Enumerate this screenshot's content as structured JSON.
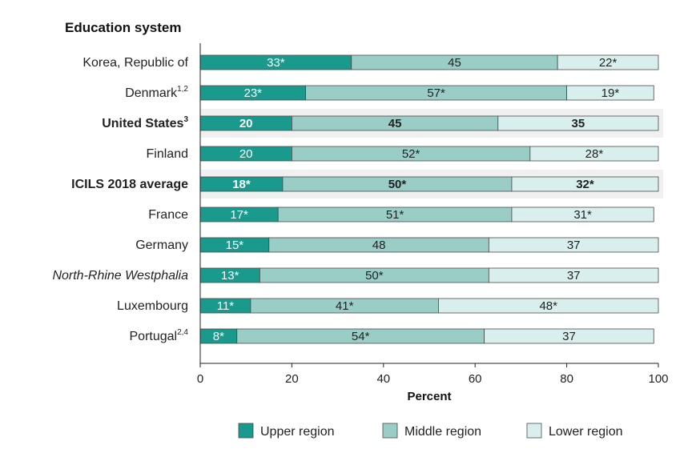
{
  "chart_data": {
    "type": "bar",
    "orientation": "horizontal",
    "stacked": true,
    "category_header": "Education system",
    "xlabel": "Percent",
    "xlim": [
      0,
      100
    ],
    "x_ticks": [
      "0",
      "20",
      "40",
      "60",
      "80",
      "100"
    ],
    "categories": [
      {
        "name": "Korea, Republic of",
        "sup": "",
        "style": "normal",
        "highlight": false
      },
      {
        "name": "Denmark",
        "sup": "1,2",
        "style": "normal",
        "highlight": false
      },
      {
        "name": "United States",
        "sup": "3",
        "style": "bold",
        "highlight": true
      },
      {
        "name": "Finland",
        "sup": "",
        "style": "normal",
        "highlight": false
      },
      {
        "name": "ICILS 2018 average",
        "sup": "",
        "style": "bold",
        "highlight": true
      },
      {
        "name": "France",
        "sup": "",
        "style": "normal",
        "highlight": false
      },
      {
        "name": "Germany",
        "sup": "",
        "style": "normal",
        "highlight": false
      },
      {
        "name": "North-Rhine Westphalia",
        "sup": "",
        "style": "italic",
        "highlight": false
      },
      {
        "name": "Luxembourg",
        "sup": "",
        "style": "normal",
        "highlight": false
      },
      {
        "name": "Portugal",
        "sup": "2,4",
        "style": "normal",
        "highlight": false
      }
    ],
    "series": [
      {
        "name": "Upper region",
        "color": "#1a9a8c",
        "text_color": "#ffffff",
        "values": [
          33,
          23,
          20,
          20,
          18,
          17,
          15,
          13,
          11,
          8
        ],
        "labels": [
          "33*",
          "23*",
          "20",
          "20",
          "18*",
          "17*",
          "15*",
          "13*",
          "11*",
          "8*"
        ]
      },
      {
        "name": "Middle region",
        "color": "#9bcdc7",
        "text_color": "#222222",
        "values": [
          45,
          57,
          45,
          52,
          50,
          51,
          48,
          50,
          41,
          54
        ],
        "labels": [
          "45",
          "57*",
          "45",
          "52*",
          "50*",
          "51*",
          "48",
          "50*",
          "41*",
          "54*"
        ]
      },
      {
        "name": "Lower region",
        "color": "#d9efed",
        "text_color": "#222222",
        "values": [
          22,
          19,
          35,
          28,
          32,
          31,
          37,
          37,
          48,
          37
        ],
        "labels": [
          "22*",
          "19*",
          "35",
          "28*",
          "32*",
          "31*",
          "37",
          "37",
          "48*",
          "37"
        ]
      }
    ],
    "legend_position": "bottom",
    "grid": false
  }
}
